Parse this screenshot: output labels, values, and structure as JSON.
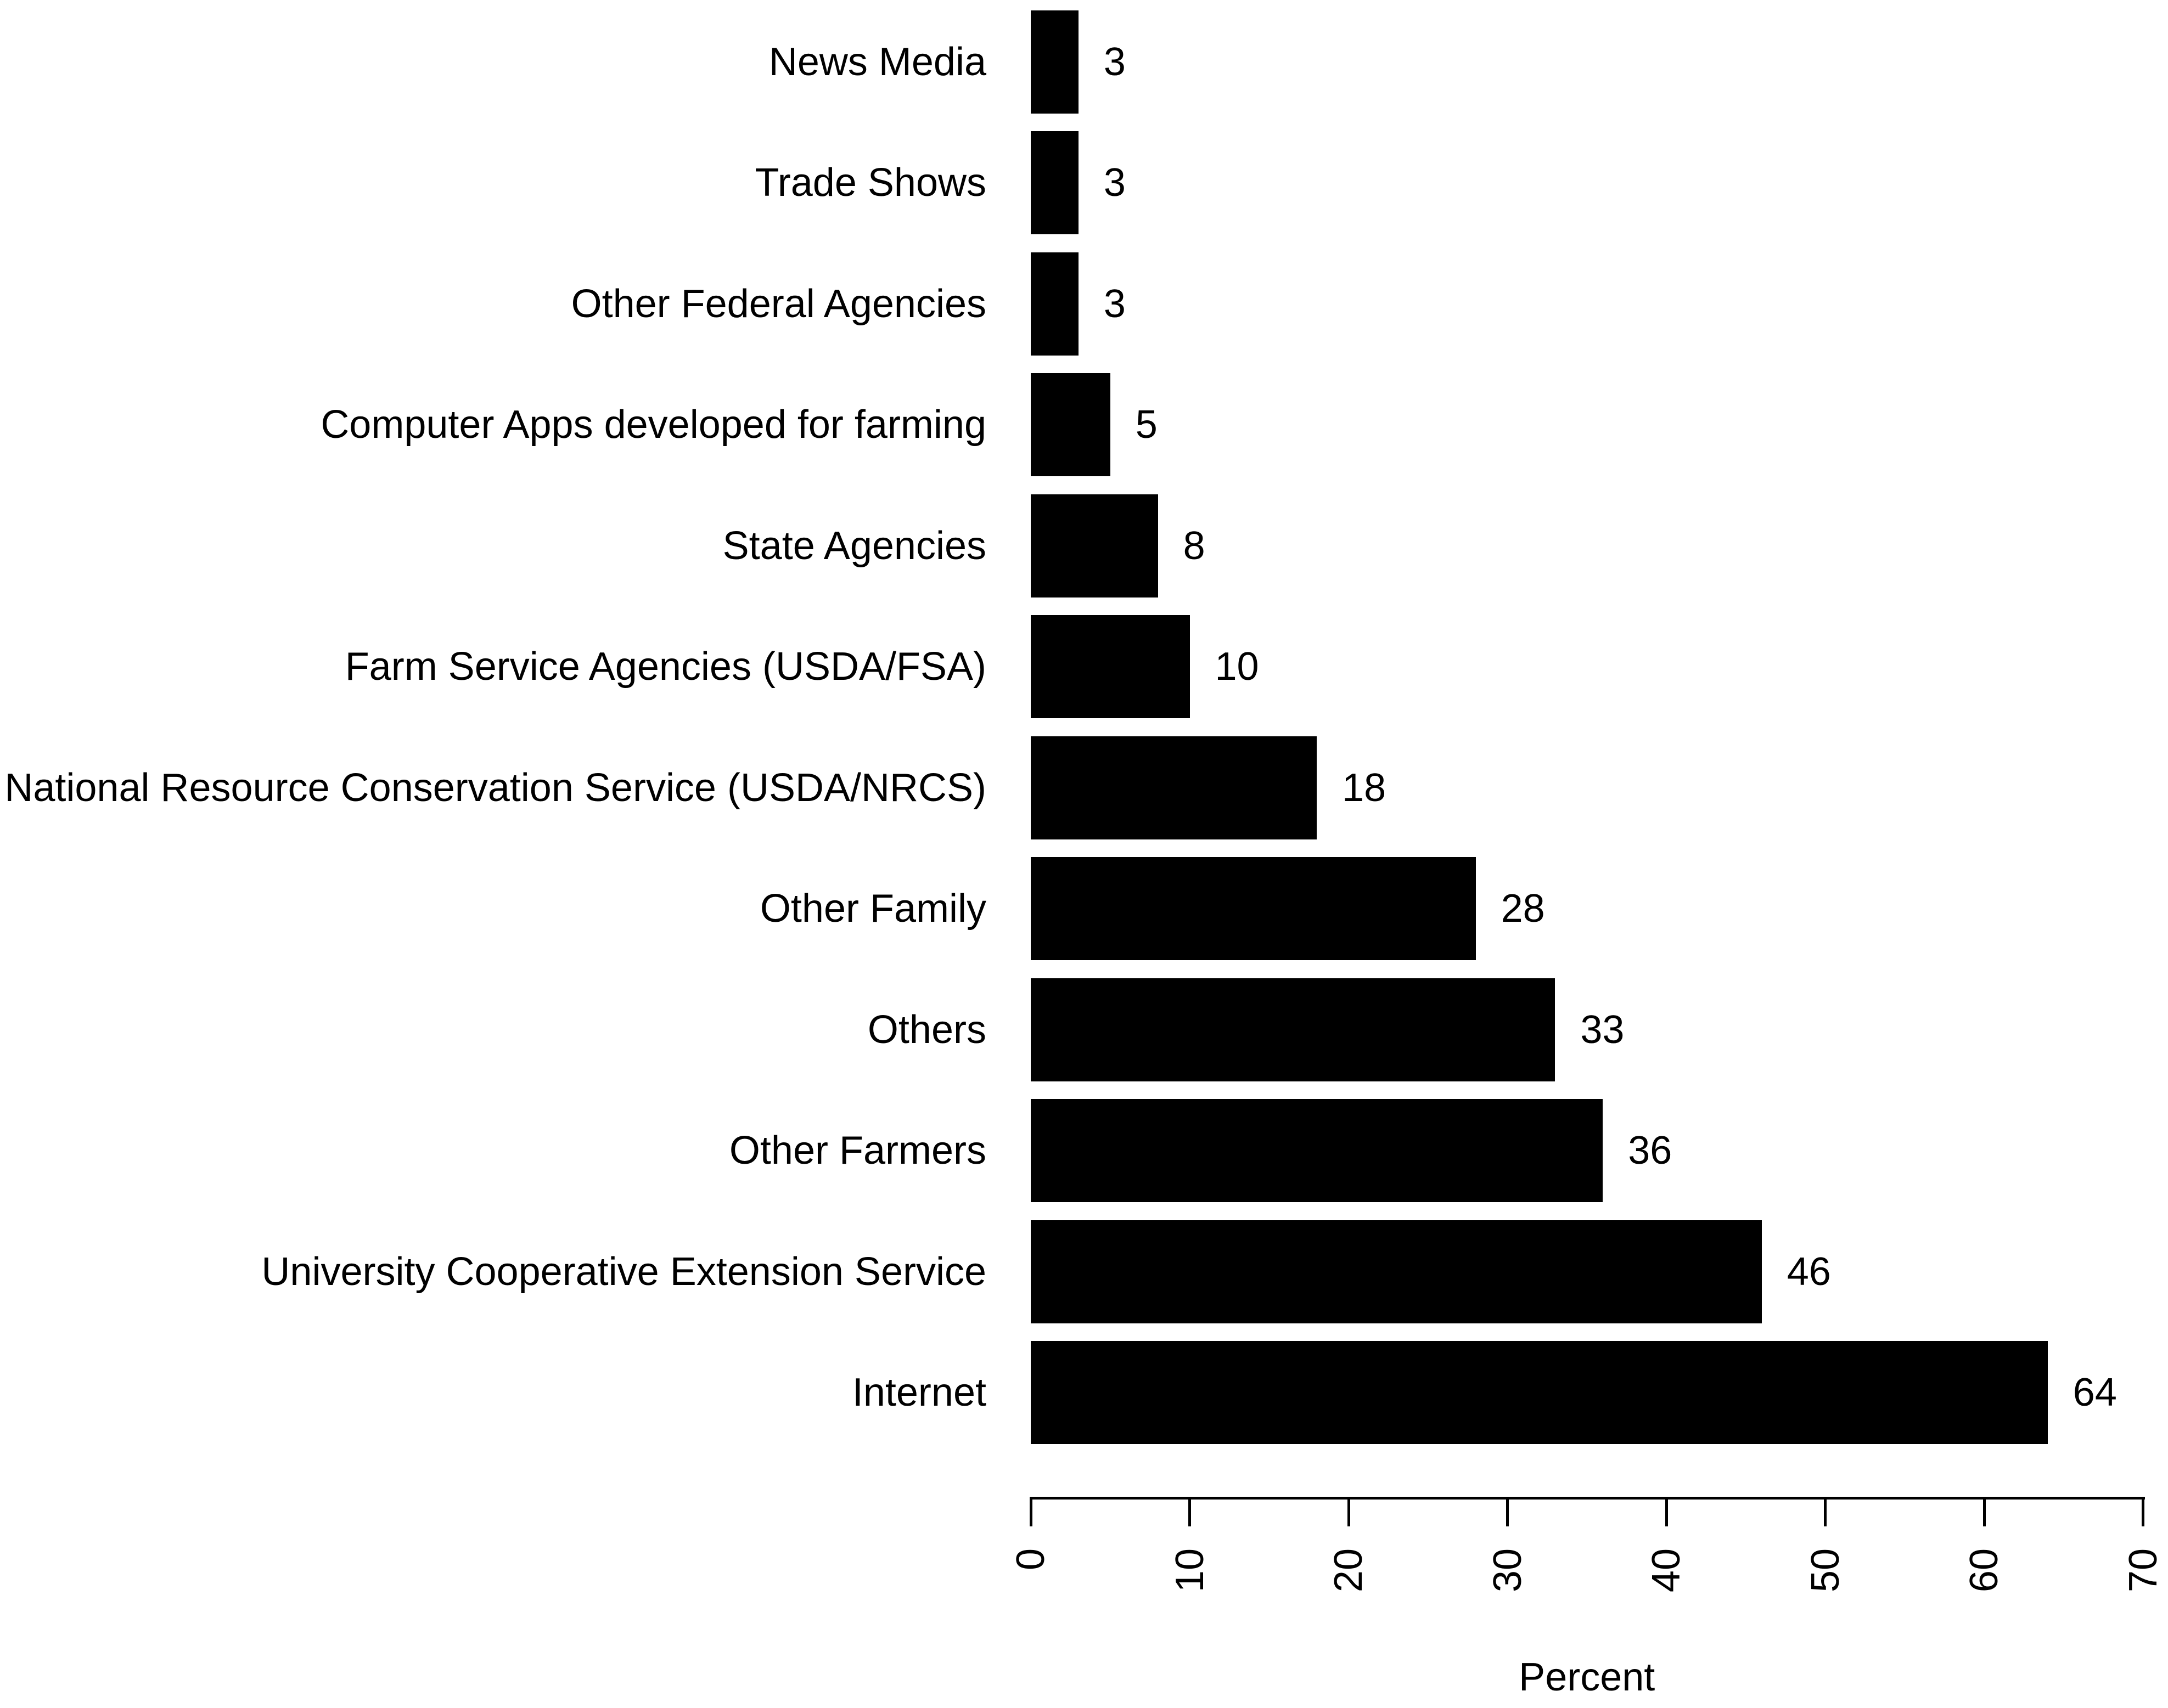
{
  "chart_data": {
    "type": "bar",
    "orientation": "horizontal",
    "title": "",
    "xlabel": "Percent",
    "ylabel": "",
    "xlim": [
      0,
      70
    ],
    "grid": false,
    "legend": null,
    "bar_color": "#000000",
    "text_color": "#000000",
    "background_color": "#ffffff",
    "value_labels_shown": true,
    "tick_labels": [
      "0",
      "10",
      "20",
      "30",
      "40",
      "50",
      "60",
      "70"
    ],
    "tick_values": [
      0,
      10,
      20,
      30,
      40,
      50,
      60,
      70
    ],
    "categories": [
      "News Media",
      "Trade Shows",
      "Other Federal Agencies",
      "Computer Apps developed for farming",
      "State Agencies",
      "Farm Service Agencies (USDA/FSA)",
      "National Resource Conservation Service (USDA/NRCS)",
      "Other Family",
      "Others",
      "Other Farmers",
      "University Cooperative Extension Service",
      "Internet"
    ],
    "values": [
      3,
      3,
      3,
      5,
      8,
      10,
      18,
      28,
      33,
      36,
      46,
      64
    ],
    "value_labels": [
      "3",
      "3",
      "3",
      "5",
      "8",
      "10",
      "18",
      "28",
      "33",
      "36",
      "46",
      "64"
    ]
  }
}
